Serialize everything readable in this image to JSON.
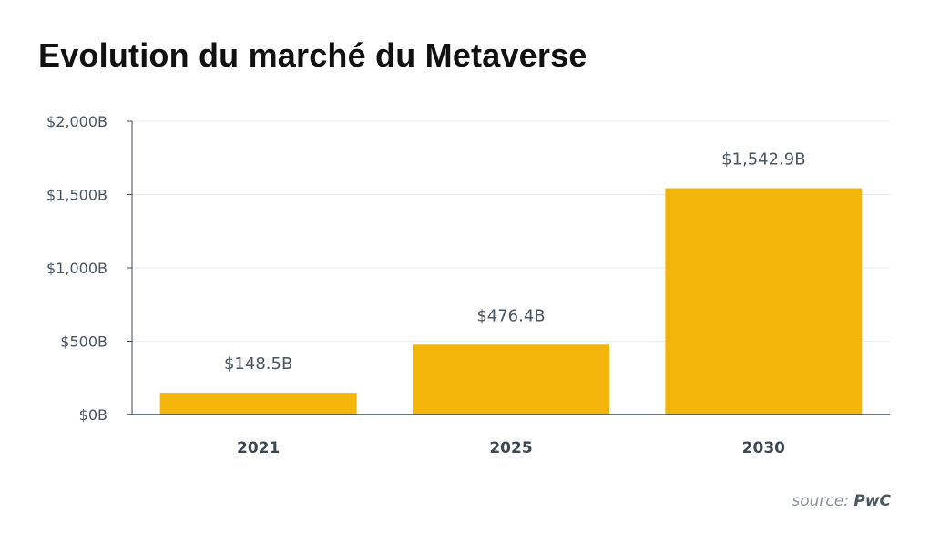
{
  "chart_data": {
    "type": "bar",
    "title": "Evolution du marché du Metaverse",
    "categories": [
      "2021",
      "2025",
      "2030"
    ],
    "values": [
      148.5,
      476.4,
      1542.9
    ],
    "value_labels": [
      "$148.5B",
      "$476.4B",
      "$1,542.9B"
    ],
    "ylim": [
      0,
      2000
    ],
    "yticks": [
      0,
      500,
      1000,
      1500,
      2000
    ],
    "ytick_labels": [
      "$0B",
      "$500B",
      "$1,000B",
      "$1,500B",
      "$2,000B"
    ],
    "xlabel": "",
    "ylabel": "",
    "grid": true,
    "bar_color": "#f4b50b"
  },
  "source": {
    "label": "source:",
    "name": "PwC"
  }
}
